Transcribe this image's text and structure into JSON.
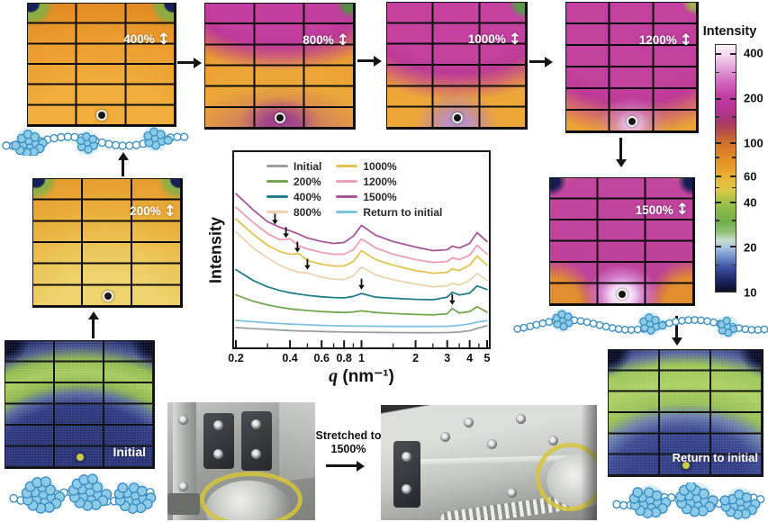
{
  "icons": {
    "stretch_arrow": "↕"
  },
  "panels": [
    {
      "id": "p400",
      "label": "400%"
    },
    {
      "id": "p800",
      "label": "800%"
    },
    {
      "id": "p1000",
      "label": "1000%"
    },
    {
      "id": "p1200",
      "label": "1200%"
    },
    {
      "id": "p200",
      "label": "200%"
    },
    {
      "id": "p1500",
      "label": "1500%"
    },
    {
      "id": "pInitial",
      "label": "Initial"
    },
    {
      "id": "pReturn",
      "label": "Return to initial"
    }
  ],
  "colorbar": {
    "title": "Intensity",
    "ticks": [
      "400",
      "200",
      "100",
      "60",
      "40",
      "20",
      "10"
    ],
    "scale": "log",
    "top_value": 460,
    "bottom_value": 10
  },
  "stretch_caption": {
    "line1": "Stretched to",
    "line2": "1500%"
  },
  "chart_data": {
    "type": "line",
    "title": "",
    "xlabel": "q (nm⁻¹)",
    "xlabel_var": "q",
    "xlabel_unit": " (nm⁻¹)",
    "ylabel": "Intensity",
    "x_scale": "log",
    "xlim": [
      0.2,
      5
    ],
    "xticks": [
      0.2,
      0.4,
      0.6,
      0.8,
      1,
      2,
      3,
      4,
      5
    ],
    "ylim": [
      0,
      100
    ],
    "y_units": "arbitrary units, curves offset-stacked, no y ticks",
    "legend_position": "top-left inside",
    "grid": false,
    "x": [
      0.2,
      0.25,
      0.3,
      0.35,
      0.4,
      0.45,
      0.5,
      0.6,
      0.7,
      0.8,
      0.9,
      1.0,
      1.2,
      1.5,
      2.0,
      2.5,
      3.0,
      3.2,
      3.5,
      4.0,
      4.4,
      5.0
    ],
    "series": [
      {
        "name": "Initial",
        "color": "#9aa0a2",
        "values": [
          8,
          7.4,
          7,
          6.6,
          6.3,
          6.1,
          6,
          5.8,
          5.6,
          5.5,
          5.4,
          5.4,
          5.3,
          5.2,
          5.1,
          5.1,
          5.2,
          5.3,
          5.5,
          6.2,
          7.5,
          9
        ]
      },
      {
        "name": "200%",
        "color": "#74a84e",
        "values": [
          26,
          22.5,
          20.5,
          19.2,
          18.3,
          17.8,
          17.4,
          16.8,
          16.5,
          16.3,
          16.6,
          17.2,
          16.3,
          15.7,
          15.2,
          15,
          15.6,
          18.5,
          16,
          16.8,
          19.5,
          16.5
        ]
      },
      {
        "name": "400%",
        "color": "#1f7d8c",
        "values": [
          40,
          34,
          30.5,
          28.5,
          27.2,
          26.4,
          25.8,
          25,
          24.6,
          24.4,
          25.2,
          26.8,
          24.8,
          24.2,
          23.6,
          23.4,
          24.8,
          27.5,
          26,
          27,
          31,
          29
        ]
      },
      {
        "name": "800%",
        "color": "#ecd3ae",
        "values": [
          61,
          52,
          46.5,
          42.5,
          40,
          38.5,
          38.2,
          35.8,
          34.8,
          34.5,
          36.5,
          41.5,
          37,
          34.5,
          32,
          30.5,
          31,
          32.5,
          31.5,
          34,
          38,
          34
        ]
      },
      {
        "name": "1000%",
        "color": "#e3c254",
        "values": [
          68,
          59.5,
          53.5,
          50,
          48.5,
          48.8,
          45,
          43,
          42,
          42,
          44.5,
          50.5,
          45.5,
          42.5,
          39.5,
          38,
          38.5,
          40.5,
          39.5,
          42.5,
          47.5,
          42.5
        ]
      },
      {
        "name": "1200%",
        "color": "#ef9db5",
        "values": [
          74.5,
          66,
          60,
          56.5,
          57,
          53,
          51.5,
          49.5,
          48.5,
          48.5,
          51,
          57,
          52,
          48.5,
          45.5,
          44,
          44.5,
          46.5,
          45.5,
          48,
          53.5,
          48.5
        ]
      },
      {
        "name": "1500%",
        "color": "#a9569c",
        "values": [
          82,
          73,
          66.5,
          63.5,
          61.5,
          59.5,
          57.5,
          55.5,
          54.5,
          55,
          58.5,
          64.5,
          59,
          55.5,
          52.5,
          50.5,
          51,
          53,
          52,
          54.5,
          60.5,
          55.5
        ]
      },
      {
        "name": "Return to initial",
        "color": "#7ec3e6",
        "values": [
          12,
          11.2,
          10.6,
          10.2,
          9.9,
          9.7,
          9.5,
          9.2,
          9,
          8.9,
          8.8,
          8.8,
          8.7,
          8.6,
          8.6,
          8.6,
          8.7,
          8.9,
          9.2,
          10,
          11,
          11.8
        ]
      }
    ],
    "annotations": [
      {
        "type": "down-arrow",
        "q": 0.33,
        "y": 66,
        "points_to": "1500%"
      },
      {
        "type": "down-arrow",
        "q": 0.38,
        "y": 58.5,
        "points_to": "1200%"
      },
      {
        "type": "down-arrow",
        "q": 0.44,
        "y": 50.5,
        "points_to": "1000%"
      },
      {
        "type": "down-arrow",
        "q": 0.5,
        "y": 41,
        "points_to": "800%"
      },
      {
        "type": "down-arrow",
        "q": 1.0,
        "y": 30,
        "points_to": "400%"
      },
      {
        "type": "down-arrow",
        "q": 3.2,
        "y": 21.5,
        "points_to": "200%"
      }
    ]
  }
}
